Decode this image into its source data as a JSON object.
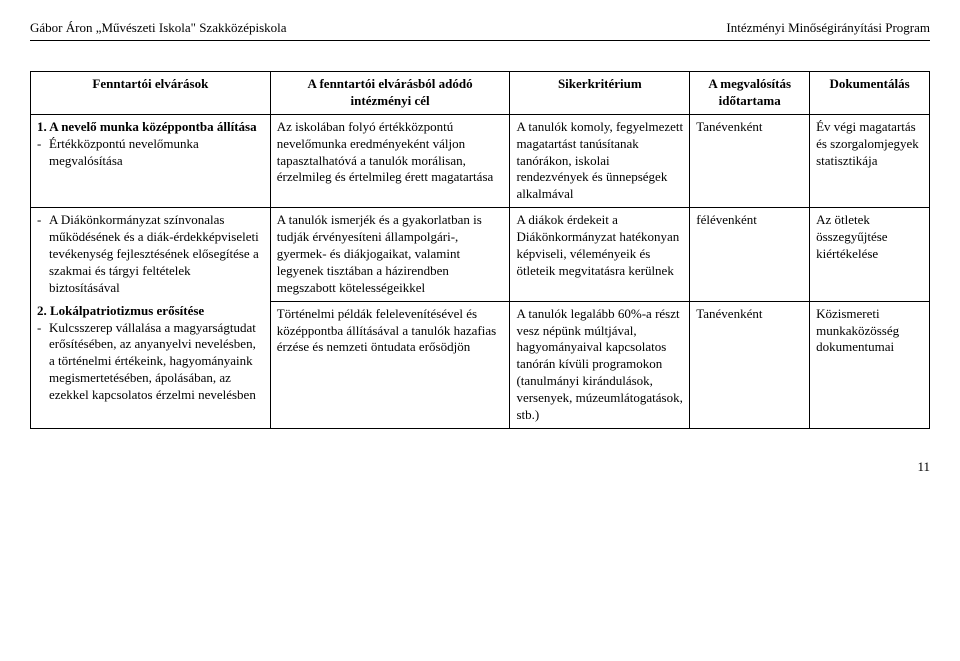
{
  "header": {
    "left": "Gábor Áron „Művészeti Iskola\" Szakközépiskola",
    "right": "Intézményi Minőségirányítási Program"
  },
  "table": {
    "columns": [
      "Fenntartói elvárások",
      "A fenntartói elvárásból adódó intézményi cél",
      "Sikerkritérium",
      "A megvalósítás időtartama",
      "Dokumentálás"
    ],
    "rows": [
      {
        "col1": {
          "title": "1. A nevelő munka középpontba állítása",
          "items": [
            "Értékközpontú nevelőmunka megvalósítása"
          ]
        },
        "col2": "Az iskolában folyó értékközpontú nevelőmunka eredményeként váljon tapasztalhatóvá a tanulók morálisan, érzelmileg és értelmileg érett magatartása",
        "col3": "A tanulók komoly, fegyelmezett magatartást tanúsítanak tanórákon, iskolai rendezvények és ünnepségek alkalmával",
        "col4": "Tanévenként",
        "col5": "Év végi magatartás és szorgalomjegyek statisztikája"
      },
      {
        "col1": {
          "title": "",
          "items": [
            "A Diákönkormányzat színvonalas működésének és a diák-érdekképviseleti tevékenység fejlesztésének elősegítése a szakmai és tárgyi feltételek biztosításával"
          ]
        },
        "col2": "A tanulók ismerjék és a gyakorlatban is tudják érvényesíteni állampolgári-, gyermek- és diákjogaikat, valamint legyenek tisztában a házirendben megszabott kötelességeikkel",
        "col3": "A diákok érdekeit a Diákönkormányzat hatékonyan képviseli, véleményeik és ötleteik megvitatásra kerülnek",
        "col4": "félévenként",
        "col5": "Az ötletek összegyűjtése kiértékelése"
      },
      {
        "col1": {
          "title": "2. Lokálpatriotizmus erősítése",
          "items": [
            "Kulcsszerep vállalása a magyarságtudat erősítésében, az anyanyelvi nevelésben, a történelmi értékeink, hagyományaink megismertetésében, ápolásában, az ezekkel kapcsolatos érzelmi nevelésben"
          ]
        },
        "col2": "Történelmi példák felelevenítésével és középpontba állításával a tanulók hazafias érzése és nemzeti öntudata erősödjön",
        "col3": "A tanulók legalább 60%-a részt vesz népünk múltjával, hagyományaival kapcsolatos tanórán kívüli programokon (tanulmányi kirándulások, versenyek, múzeumlátogatások, stb.)",
        "col4": "Tanévenként",
        "col5": "Közismereti munkaközösség dokumentumai"
      }
    ]
  },
  "page_number": "11"
}
